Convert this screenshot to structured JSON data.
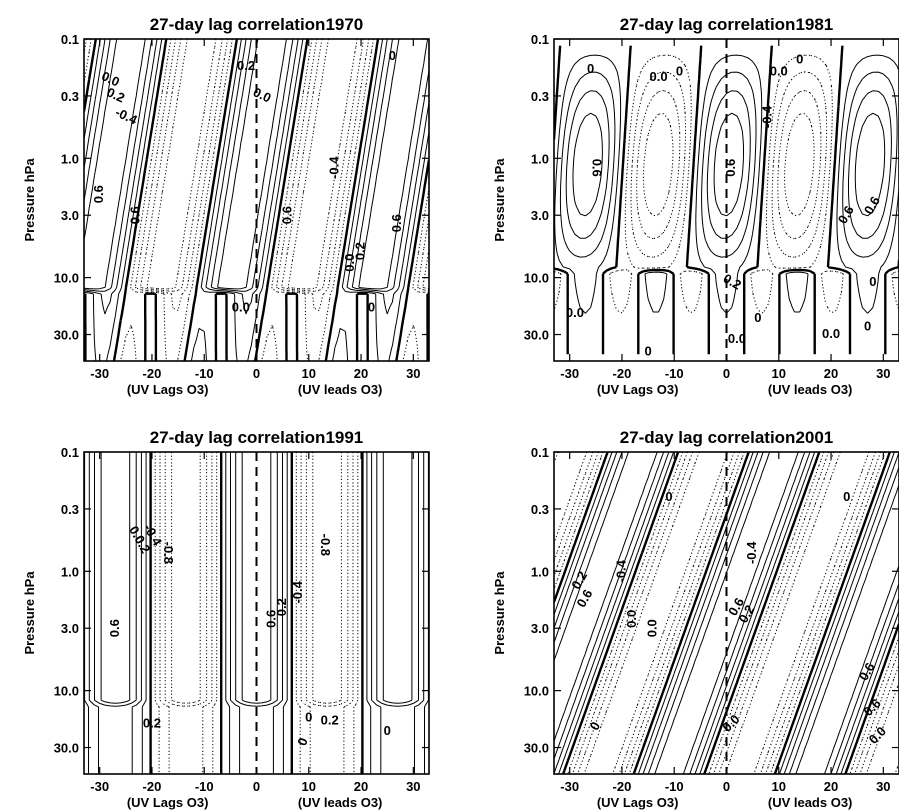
{
  "chart_data": [
    {
      "type": "contour",
      "title": "27-day lag correlation1970",
      "ylabel": "Pressure hPa",
      "xlabel_left": "(UV Lags O3)",
      "xlabel_right": "(UV leads O3)",
      "x_ticks": [
        "-30",
        "-20",
        "-10",
        "0",
        "10",
        "20",
        "30"
      ],
      "y_ticks": [
        "0.1",
        "0.3",
        "1.0",
        "3.0",
        "10.0",
        "30.0"
      ],
      "xlim": [
        -33,
        33
      ],
      "ylim": [
        50,
        0.1
      ],
      "y_scale": "log",
      "x_label_values": [
        -30,
        -20,
        -10,
        0,
        10,
        20,
        30
      ],
      "y_label_values": [
        0.1,
        0.3,
        1.0,
        3.0,
        10.0,
        30.0
      ],
      "zero_lag_line": "dashed",
      "contour_labels": [
        {
          "text": "0.0",
          "x": -28,
          "p": 0.22,
          "rot": 25
        },
        {
          "text": "0.2",
          "x": -27,
          "p": 0.3,
          "rot": 25
        },
        {
          "text": "-0.4",
          "x": -25,
          "p": 0.45,
          "rot": 25
        },
        {
          "text": "0.6",
          "x": -30,
          "p": 2.0,
          "rot": -90
        },
        {
          "text": "0.6",
          "x": -23,
          "p": 3.0,
          "rot": -90
        },
        {
          "text": "0.2",
          "x": -2,
          "p": 0.17,
          "rot": 0
        },
        {
          "text": "0.0",
          "x": 1,
          "p": 0.3,
          "rot": 25
        },
        {
          "text": "-0.4",
          "x": 15,
          "p": 1.2,
          "rot": -90
        },
        {
          "text": "0.6",
          "x": 6,
          "p": 3.0,
          "rot": -90
        },
        {
          "text": "0.0",
          "x": 18,
          "p": 7.5,
          "rot": -90
        },
        {
          "text": "0.2",
          "x": 20,
          "p": 6.0,
          "rot": -90
        },
        {
          "text": "0.6",
          "x": 27,
          "p": 3.5,
          "rot": -90
        },
        {
          "text": "0",
          "x": 26,
          "p": 0.14,
          "rot": 0
        },
        {
          "text": "0.0",
          "x": -3,
          "p": 18,
          "rot": 0
        },
        {
          "text": "0",
          "x": 22,
          "p": 18,
          "rot": 0
        }
      ]
    },
    {
      "type": "contour",
      "title": "27-day lag correlation1981",
      "ylabel": "Pressure hPa",
      "xlabel_left": "(UV Lags O3)",
      "xlabel_right": "(UV leads O3)",
      "x_ticks": [
        "-30",
        "-20",
        "-10",
        "0",
        "10",
        "20",
        "30"
      ],
      "y_ticks": [
        "0.1",
        "0.3",
        "1.0",
        "3.0",
        "10.0",
        "30.0"
      ],
      "xlim": [
        -33,
        33
      ],
      "ylim": [
        50,
        0.1
      ],
      "y_scale": "log",
      "x_label_values": [
        -30,
        -20,
        -10,
        0,
        10,
        20,
        30
      ],
      "y_label_values": [
        0.1,
        0.3,
        1.0,
        3.0,
        10.0,
        30.0
      ],
      "zero_lag_line": "dashed",
      "contour_labels": [
        {
          "text": "0",
          "x": -26,
          "p": 0.18,
          "rot": 0
        },
        {
          "text": "0.0",
          "x": -13,
          "p": 0.21,
          "rot": 0
        },
        {
          "text": "0",
          "x": -9,
          "p": 0.19,
          "rot": 0
        },
        {
          "text": "0.0",
          "x": 10,
          "p": 0.19,
          "rot": 0
        },
        {
          "text": "0",
          "x": 14,
          "p": 0.15,
          "rot": 0
        },
        {
          "text": "-0.4",
          "x": 8,
          "p": 0.45,
          "rot": -90
        },
        {
          "text": "0.6",
          "x": -25,
          "p": 1.2,
          "rot": 90
        },
        {
          "text": "0.6",
          "x": 1,
          "p": 1.2,
          "rot": -90
        },
        {
          "text": "0.6",
          "x": 23,
          "p": 3.0,
          "rot": -60
        },
        {
          "text": "0.6",
          "x": 28,
          "p": 2.5,
          "rot": -60
        },
        {
          "text": "0.2",
          "x": 1,
          "p": 11,
          "rot": 30
        },
        {
          "text": "0",
          "x": 28,
          "p": 11,
          "rot": 0
        },
        {
          "text": "0.0",
          "x": -29,
          "p": 20,
          "rot": 0
        },
        {
          "text": "0",
          "x": 6,
          "p": 22,
          "rot": 0
        },
        {
          "text": "0.0",
          "x": 2,
          "p": 33,
          "rot": 0
        },
        {
          "text": "0",
          "x": -15,
          "p": 42,
          "rot": 0
        },
        {
          "text": "0.0",
          "x": 20,
          "p": 30,
          "rot": 0
        },
        {
          "text": "0",
          "x": 27,
          "p": 26,
          "rot": 0
        }
      ]
    },
    {
      "type": "contour",
      "title": "27-day lag correlation1991",
      "ylabel": "Pressure hPa",
      "xlabel_left": "(UV Lags O3)",
      "xlabel_right": "(UV leads O3)",
      "x_ticks": [
        "-30",
        "-20",
        "-10",
        "0",
        "10",
        "20",
        "30"
      ],
      "y_ticks": [
        "0.1",
        "0.3",
        "1.0",
        "3.0",
        "10.0",
        "30.0"
      ],
      "xlim": [
        -33,
        33
      ],
      "ylim": [
        50,
        0.1
      ],
      "y_scale": "log",
      "x_label_values": [
        -30,
        -20,
        -10,
        0,
        10,
        20,
        30
      ],
      "y_label_values": [
        0.1,
        0.3,
        1.0,
        3.0,
        10.0,
        30.0
      ],
      "zero_lag_line": "dashed",
      "contour_labels": [
        {
          "text": "0.0",
          "x": -23,
          "p": 0.5,
          "rot": 60
        },
        {
          "text": "0.2",
          "x": -22,
          "p": 0.6,
          "rot": 60
        },
        {
          "text": "-0.4",
          "x": -20,
          "p": 0.5,
          "rot": 60
        },
        {
          "text": "-0.8",
          "x": -17,
          "p": 0.7,
          "rot": 90
        },
        {
          "text": "0.6",
          "x": -27,
          "p": 3.0,
          "rot": -90
        },
        {
          "text": "0.6",
          "x": 3,
          "p": 2.5,
          "rot": -90
        },
        {
          "text": "0.2",
          "x": 5,
          "p": 2.0,
          "rot": -90
        },
        {
          "text": "-0.4",
          "x": 8,
          "p": 1.5,
          "rot": -90
        },
        {
          "text": "-0.8",
          "x": 13,
          "p": 0.6,
          "rot": 90
        },
        {
          "text": "0.2",
          "x": -20,
          "p": 19,
          "rot": 0
        },
        {
          "text": "0",
          "x": 10,
          "p": 17,
          "rot": 0
        },
        {
          "text": "0.2",
          "x": 14,
          "p": 18,
          "rot": 0
        },
        {
          "text": "0",
          "x": 9,
          "p": 27,
          "rot": -70
        },
        {
          "text": "0",
          "x": 25,
          "p": 22,
          "rot": 0
        }
      ]
    },
    {
      "type": "contour",
      "title": "27-day lag correlation2001",
      "ylabel": "Pressure hPa",
      "xlabel_left": "(UV Lags O3)",
      "xlabel_right": "(UV leads O3)",
      "x_ticks": [
        "-30",
        "-20",
        "-10",
        "0",
        "10",
        "20",
        "30"
      ],
      "y_ticks": [
        "0.1",
        "0.3",
        "1.0",
        "3.0",
        "10.0",
        "30.0"
      ],
      "xlim": [
        -33,
        33
      ],
      "ylim": [
        50,
        0.1
      ],
      "y_scale": "log",
      "x_label_values": [
        -30,
        -20,
        -10,
        0,
        10,
        20,
        30
      ],
      "y_label_values": [
        0.1,
        0.3,
        1.0,
        3.0,
        10.0,
        30.0
      ],
      "zero_lag_line": "dashed",
      "contour_labels": [
        {
          "text": "0",
          "x": -11,
          "p": 0.24,
          "rot": 0
        },
        {
          "text": "0",
          "x": 23,
          "p": 0.24,
          "rot": 0
        },
        {
          "text": "0.2",
          "x": -28,
          "p": 1.2,
          "rot": -60
        },
        {
          "text": "0.6",
          "x": -27,
          "p": 1.7,
          "rot": -60
        },
        {
          "text": "-0.4",
          "x": -20,
          "p": 1.0,
          "rot": -90
        },
        {
          "text": "0.0",
          "x": -18,
          "p": 2.5,
          "rot": -90
        },
        {
          "text": "0.0",
          "x": -14,
          "p": 3.0,
          "rot": -90
        },
        {
          "text": "-0.4",
          "x": 5,
          "p": 0.7,
          "rot": -90
        },
        {
          "text": "0.6",
          "x": 2,
          "p": 2.0,
          "rot": -60
        },
        {
          "text": "0.2",
          "x": 4,
          "p": 2.3,
          "rot": -60
        },
        {
          "text": "0",
          "x": -25,
          "p": 20,
          "rot": -60
        },
        {
          "text": "0.0",
          "x": 1,
          "p": 19,
          "rot": -45
        },
        {
          "text": "0.6",
          "x": 27,
          "p": 7,
          "rot": -60
        },
        {
          "text": "0.6",
          "x": 28,
          "p": 14,
          "rot": -45
        },
        {
          "text": "0.0",
          "x": 29,
          "p": 24,
          "rot": -45
        }
      ]
    }
  ]
}
